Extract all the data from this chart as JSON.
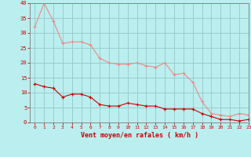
{
  "x": [
    0,
    1,
    2,
    3,
    4,
    5,
    6,
    7,
    8,
    9,
    10,
    11,
    12,
    13,
    14,
    15,
    16,
    17,
    18,
    19,
    20,
    21,
    22,
    23
  ],
  "wind_avg": [
    13,
    12,
    11.5,
    8.5,
    9.5,
    9.5,
    8.5,
    6,
    5.5,
    5.5,
    6.5,
    6,
    5.5,
    5.5,
    4.5,
    4.5,
    4.5,
    4.5,
    3,
    2,
    1,
    1,
    0.5,
    1
  ],
  "wind_gust": [
    32,
    40,
    34,
    26.5,
    27,
    27,
    26,
    21.5,
    20,
    19.5,
    19.5,
    20,
    19,
    18.5,
    20,
    16,
    16.5,
    13.5,
    7,
    3,
    2.5,
    2,
    3,
    2.5
  ],
  "bg_color": "#bbeeee",
  "line_avg_color": "#cc0000",
  "line_gust_color": "#ee8888",
  "grid_color": "#99cccc",
  "xlabel": "Vent moyen/en rafales ( km/h )",
  "xlabel_color": "#cc0000",
  "tick_color": "#cc0000",
  "spine_color": "#888888",
  "ylim": [
    0,
    40
  ],
  "xlim": [
    -0.5,
    23
  ],
  "yticks": [
    0,
    5,
    10,
    15,
    20,
    25,
    30,
    35,
    40
  ],
  "xticks": [
    0,
    1,
    2,
    3,
    4,
    5,
    6,
    7,
    8,
    9,
    10,
    11,
    12,
    13,
    14,
    15,
    16,
    17,
    18,
    19,
    20,
    21,
    22,
    23
  ]
}
